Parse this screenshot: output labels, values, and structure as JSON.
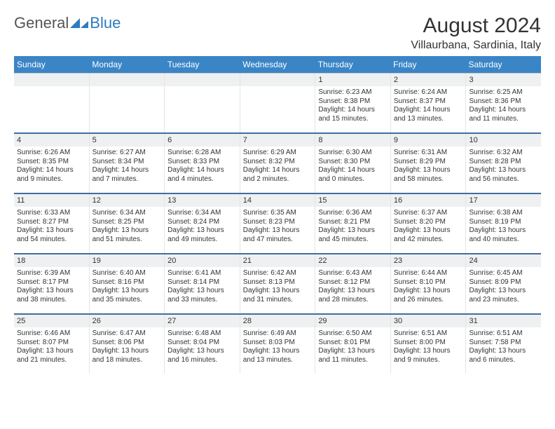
{
  "logo": {
    "general": "General",
    "blue": "Blue"
  },
  "header": {
    "month": "August 2024",
    "location": "Villaurbana, Sardinia, Italy"
  },
  "colors": {
    "dowBg": "#3a85c6",
    "weekDivider": "#416ea0",
    "dayNumBg": "#eef0f1",
    "border": "#e5e5e5",
    "logoBlue": "#2d7cc0",
    "text": "#333333"
  },
  "daysOfWeek": [
    "Sunday",
    "Monday",
    "Tuesday",
    "Wednesday",
    "Thursday",
    "Friday",
    "Saturday"
  ],
  "calendar": {
    "firstWeekday": 4,
    "daysInMonth": 31
  },
  "days": {
    "1": {
      "sunrise": "6:23 AM",
      "sunset": "8:38 PM",
      "daylight": "14 hours and 15 minutes."
    },
    "2": {
      "sunrise": "6:24 AM",
      "sunset": "8:37 PM",
      "daylight": "14 hours and 13 minutes."
    },
    "3": {
      "sunrise": "6:25 AM",
      "sunset": "8:36 PM",
      "daylight": "14 hours and 11 minutes."
    },
    "4": {
      "sunrise": "6:26 AM",
      "sunset": "8:35 PM",
      "daylight": "14 hours and 9 minutes."
    },
    "5": {
      "sunrise": "6:27 AM",
      "sunset": "8:34 PM",
      "daylight": "14 hours and 7 minutes."
    },
    "6": {
      "sunrise": "6:28 AM",
      "sunset": "8:33 PM",
      "daylight": "14 hours and 4 minutes."
    },
    "7": {
      "sunrise": "6:29 AM",
      "sunset": "8:32 PM",
      "daylight": "14 hours and 2 minutes."
    },
    "8": {
      "sunrise": "6:30 AM",
      "sunset": "8:30 PM",
      "daylight": "14 hours and 0 minutes."
    },
    "9": {
      "sunrise": "6:31 AM",
      "sunset": "8:29 PM",
      "daylight": "13 hours and 58 minutes."
    },
    "10": {
      "sunrise": "6:32 AM",
      "sunset": "8:28 PM",
      "daylight": "13 hours and 56 minutes."
    },
    "11": {
      "sunrise": "6:33 AM",
      "sunset": "8:27 PM",
      "daylight": "13 hours and 54 minutes."
    },
    "12": {
      "sunrise": "6:34 AM",
      "sunset": "8:25 PM",
      "daylight": "13 hours and 51 minutes."
    },
    "13": {
      "sunrise": "6:34 AM",
      "sunset": "8:24 PM",
      "daylight": "13 hours and 49 minutes."
    },
    "14": {
      "sunrise": "6:35 AM",
      "sunset": "8:23 PM",
      "daylight": "13 hours and 47 minutes."
    },
    "15": {
      "sunrise": "6:36 AM",
      "sunset": "8:21 PM",
      "daylight": "13 hours and 45 minutes."
    },
    "16": {
      "sunrise": "6:37 AM",
      "sunset": "8:20 PM",
      "daylight": "13 hours and 42 minutes."
    },
    "17": {
      "sunrise": "6:38 AM",
      "sunset": "8:19 PM",
      "daylight": "13 hours and 40 minutes."
    },
    "18": {
      "sunrise": "6:39 AM",
      "sunset": "8:17 PM",
      "daylight": "13 hours and 38 minutes."
    },
    "19": {
      "sunrise": "6:40 AM",
      "sunset": "8:16 PM",
      "daylight": "13 hours and 35 minutes."
    },
    "20": {
      "sunrise": "6:41 AM",
      "sunset": "8:14 PM",
      "daylight": "13 hours and 33 minutes."
    },
    "21": {
      "sunrise": "6:42 AM",
      "sunset": "8:13 PM",
      "daylight": "13 hours and 31 minutes."
    },
    "22": {
      "sunrise": "6:43 AM",
      "sunset": "8:12 PM",
      "daylight": "13 hours and 28 minutes."
    },
    "23": {
      "sunrise": "6:44 AM",
      "sunset": "8:10 PM",
      "daylight": "13 hours and 26 minutes."
    },
    "24": {
      "sunrise": "6:45 AM",
      "sunset": "8:09 PM",
      "daylight": "13 hours and 23 minutes."
    },
    "25": {
      "sunrise": "6:46 AM",
      "sunset": "8:07 PM",
      "daylight": "13 hours and 21 minutes."
    },
    "26": {
      "sunrise": "6:47 AM",
      "sunset": "8:06 PM",
      "daylight": "13 hours and 18 minutes."
    },
    "27": {
      "sunrise": "6:48 AM",
      "sunset": "8:04 PM",
      "daylight": "13 hours and 16 minutes."
    },
    "28": {
      "sunrise": "6:49 AM",
      "sunset": "8:03 PM",
      "daylight": "13 hours and 13 minutes."
    },
    "29": {
      "sunrise": "6:50 AM",
      "sunset": "8:01 PM",
      "daylight": "13 hours and 11 minutes."
    },
    "30": {
      "sunrise": "6:51 AM",
      "sunset": "8:00 PM",
      "daylight": "13 hours and 9 minutes."
    },
    "31": {
      "sunrise": "6:51 AM",
      "sunset": "7:58 PM",
      "daylight": "13 hours and 6 minutes."
    }
  },
  "labels": {
    "sunrisePrefix": "Sunrise: ",
    "sunsetPrefix": "Sunset: ",
    "daylightPrefix": "Daylight: "
  }
}
